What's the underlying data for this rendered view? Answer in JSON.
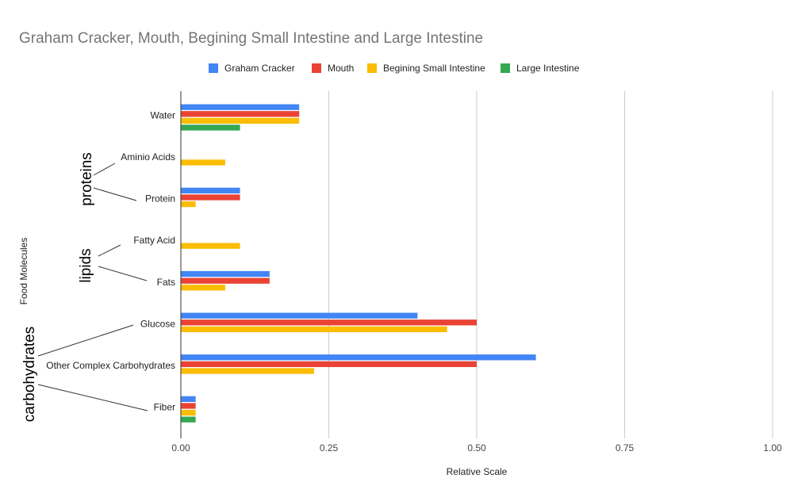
{
  "chart_data": {
    "type": "bar",
    "orientation": "horizontal",
    "title": "Graham Cracker, Mouth, Begining Small Intestine and Large Intestine",
    "xlabel": "Relative Scale",
    "ylabel": "Food Molecules",
    "xlim": [
      0,
      1
    ],
    "xticks": [
      0,
      0.25,
      0.5,
      0.75,
      1
    ],
    "xtick_labels": [
      "0.00",
      "0.25",
      "0.50",
      "0.75",
      "1.00"
    ],
    "grid": true,
    "legend_position": "top",
    "categories": [
      "Water",
      "Aminio Acids",
      "Protein",
      "Fatty Acid",
      "Fats",
      "Glucose",
      "Other Complex Carbohydrates",
      "Fiber"
    ],
    "series": [
      {
        "name": "Graham Cracker",
        "color": "#4285f4",
        "values": [
          0.2,
          0,
          0.1,
          0,
          0.15,
          0.4,
          0.6,
          0.025
        ]
      },
      {
        "name": "Mouth",
        "color": "#ea4335",
        "values": [
          0.2,
          0,
          0.1,
          0,
          0.15,
          0.5,
          0.5,
          0.025
        ]
      },
      {
        "name": "Begining Small Intestine",
        "color": "#fbbc04",
        "values": [
          0.2,
          0.075,
          0.025,
          0.1,
          0.075,
          0.45,
          0.225,
          0.025
        ]
      },
      {
        "name": "Large Intestine",
        "color": "#34a853",
        "values": [
          0.1,
          0,
          0,
          0,
          0,
          0,
          0,
          0.025
        ]
      }
    ],
    "annotations": [
      {
        "text": "proteins",
        "categories": [
          "Aminio Acids",
          "Protein"
        ]
      },
      {
        "text": "lipids",
        "categories": [
          "Fatty Acid",
          "Fats"
        ]
      },
      {
        "text": "carbohydrates",
        "categories": [
          "Glucose",
          "Other Complex Carbohydrates",
          "Fiber"
        ]
      }
    ]
  }
}
